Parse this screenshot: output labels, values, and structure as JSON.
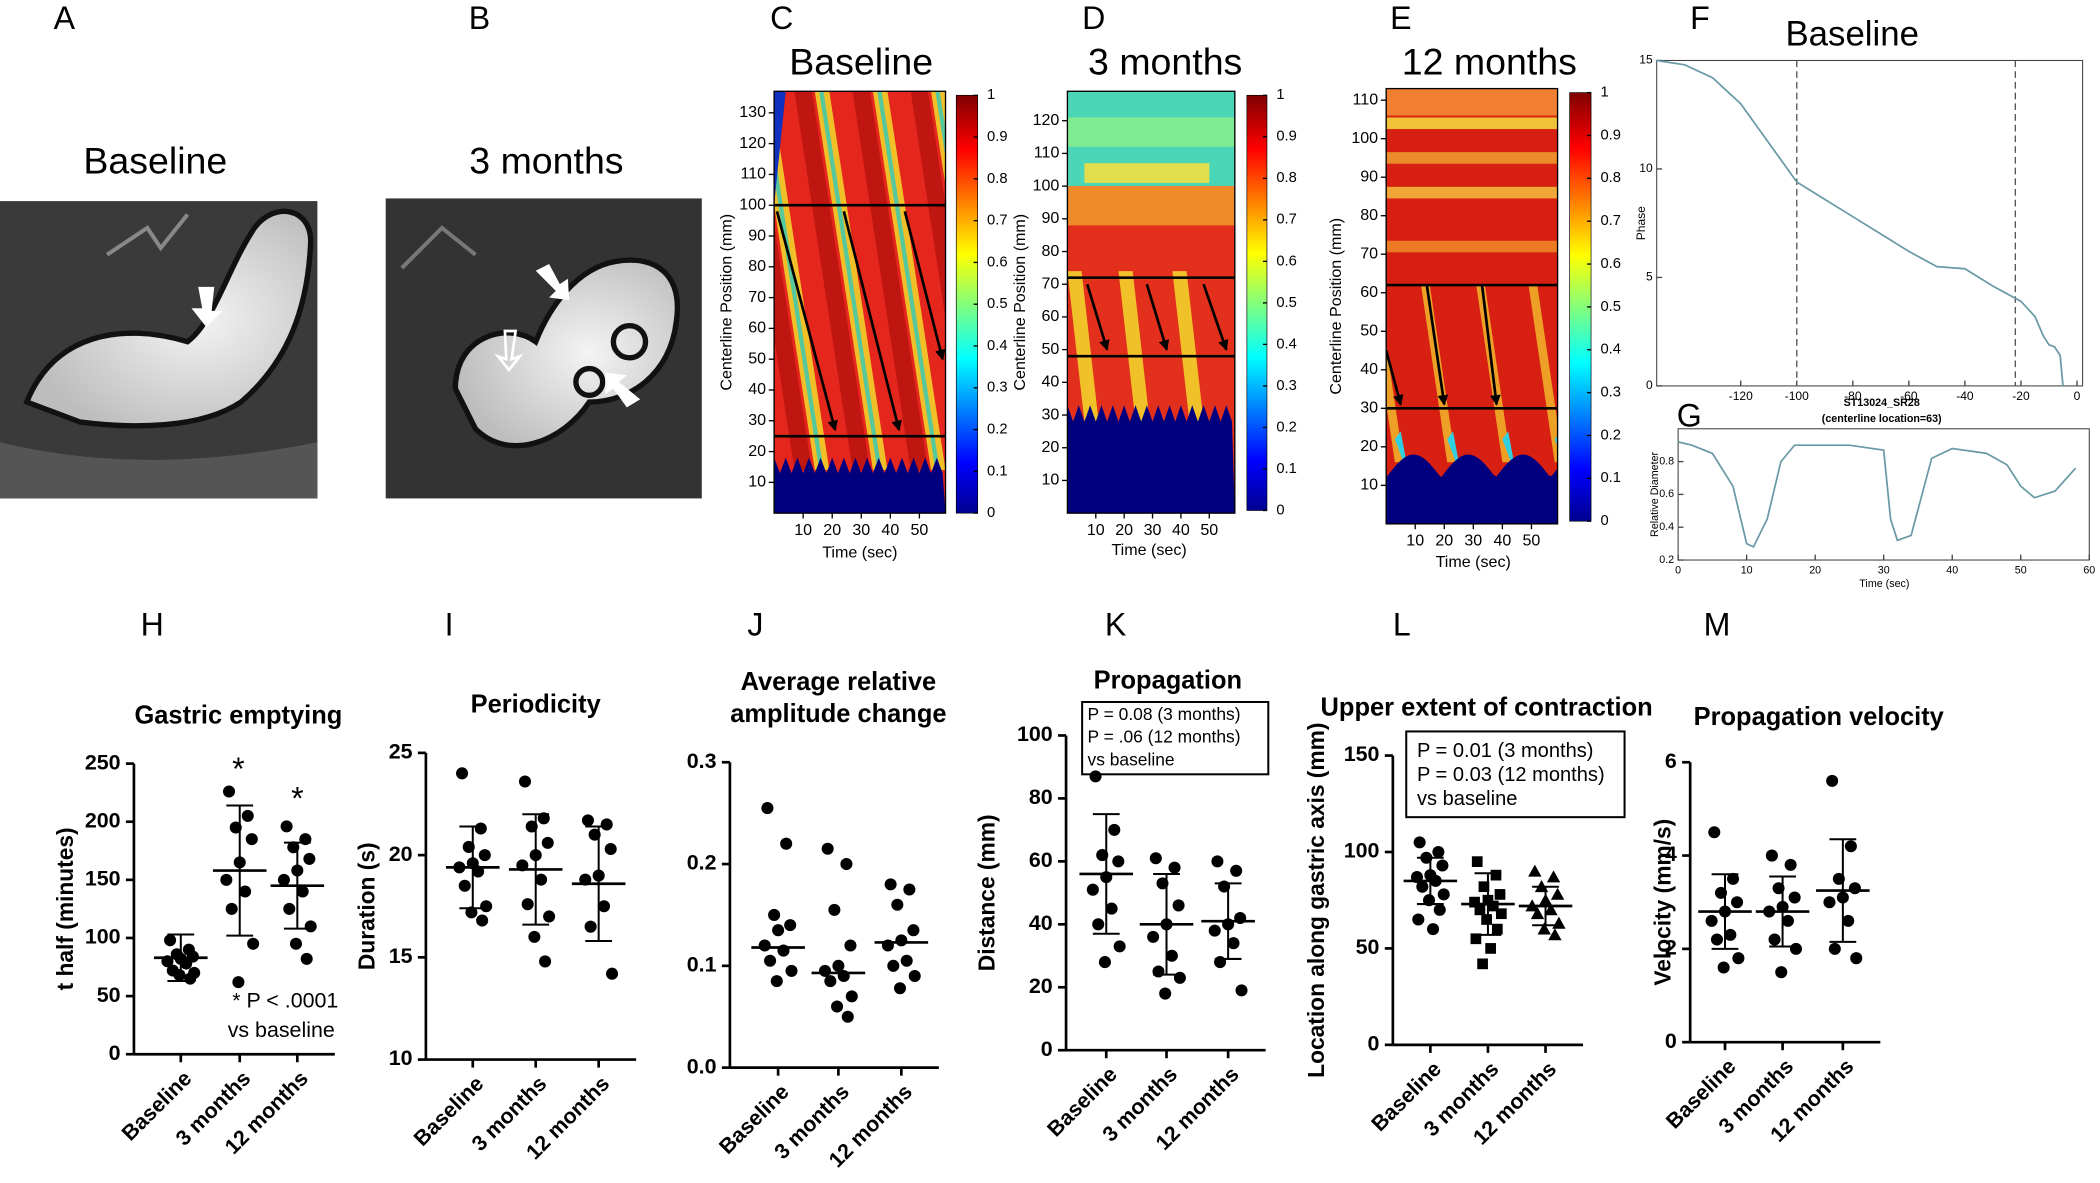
{
  "images": [
    {
      "label": "A",
      "title": "Baseline"
    },
    {
      "label": "B",
      "title": "3 months"
    }
  ],
  "chart_data": [
    {
      "type": "heatmap",
      "panel": "C",
      "title": "Baseline",
      "xlabel": "Time (sec)",
      "ylabel": "Centerline Position (mm)",
      "xlim": [
        0,
        59
      ],
      "xticks": [
        10,
        20,
        30,
        40,
        50
      ],
      "ylim": [
        0,
        137
      ],
      "yticks": [
        10,
        20,
        30,
        40,
        50,
        60,
        70,
        80,
        90,
        100,
        110,
        120,
        130
      ],
      "colorbar_ticks": [
        0,
        0.1,
        0.2,
        0.3,
        0.4,
        0.5,
        0.6,
        0.7,
        0.8,
        0.9,
        1
      ]
    },
    {
      "type": "heatmap",
      "panel": "D",
      "title": "3 months",
      "xlabel": "Time (sec)",
      "ylabel": "Centerline Position (mm)",
      "xlim": [
        0,
        59
      ],
      "xticks": [
        10,
        20,
        30,
        40,
        50
      ],
      "ylim": [
        0,
        129
      ],
      "yticks": [
        10,
        20,
        30,
        40,
        50,
        60,
        70,
        80,
        90,
        100,
        110,
        120
      ],
      "colorbar_ticks": [
        0,
        0.1,
        0.2,
        0.3,
        0.4,
        0.5,
        0.6,
        0.7,
        0.8,
        0.9,
        1
      ]
    },
    {
      "type": "heatmap",
      "panel": "E",
      "title": "12 months",
      "xlabel": "Time (sec)",
      "ylabel": "Centerline Position (mm)",
      "xlim": [
        0,
        59
      ],
      "xticks": [
        10,
        20,
        30,
        40,
        50
      ],
      "ylim": [
        0,
        113
      ],
      "yticks": [
        10,
        20,
        30,
        40,
        50,
        60,
        70,
        80,
        90,
        100,
        110
      ],
      "colorbar_ticks": [
        0,
        0.1,
        0.2,
        0.3,
        0.4,
        0.5,
        0.6,
        0.7,
        0.8,
        0.9,
        1
      ]
    },
    {
      "type": "line",
      "panel": "F",
      "title": "Baseline",
      "ylabel": "Phase",
      "color": "#6a9aa6",
      "x": [
        -150,
        -140,
        -130,
        -120,
        -110,
        -100,
        -90,
        -80,
        -70,
        -60,
        -50,
        -40,
        -30,
        -20,
        -15,
        -12,
        -10,
        -8,
        -6,
        -5
      ],
      "values": [
        15,
        14.8,
        14.2,
        13,
        11.2,
        9.4,
        8.6,
        7.8,
        7,
        6.2,
        5.5,
        5.4,
        4.6,
        3.9,
        3.2,
        2.3,
        1.9,
        1.8,
        1.4,
        0
      ],
      "xlim": [
        -150,
        2
      ],
      "xticks": [
        -120,
        -100,
        -80,
        -60,
        -40,
        -20,
        0
      ],
      "ylim": [
        0,
        15
      ],
      "yticks": [
        0,
        5,
        10,
        15
      ],
      "vlines": [
        -100,
        -22
      ]
    },
    {
      "type": "line",
      "panel": "G",
      "title": "ST13024_SR28",
      "subtitle": "(centerline location=63)",
      "xlabel": "Time (sec)",
      "ylabel": "Relative Diameter",
      "color": "#6a9aa6",
      "x": [
        0,
        2,
        5,
        8,
        10,
        11,
        13,
        15,
        17,
        20,
        25,
        30,
        31,
        32,
        34,
        37,
        40,
        45,
        48,
        50,
        52,
        55,
        58
      ],
      "values": [
        0.92,
        0.9,
        0.85,
        0.65,
        0.3,
        0.28,
        0.45,
        0.8,
        0.9,
        0.9,
        0.9,
        0.87,
        0.45,
        0.32,
        0.35,
        0.82,
        0.88,
        0.85,
        0.78,
        0.65,
        0.58,
        0.62,
        0.76
      ],
      "xlim": [
        0,
        60
      ],
      "xticks": [
        0,
        10,
        20,
        30,
        40,
        50,
        60
      ],
      "ylim": [
        0.2,
        1
      ],
      "yticks": [
        0.2,
        0.4,
        0.6,
        0.8
      ]
    },
    {
      "type": "dot",
      "panel": "H",
      "title": [
        "Gastric emptying"
      ],
      "ylabel": "t half (minutes)",
      "categories": [
        "Baseline",
        "3 months",
        "12 months"
      ],
      "points": [
        [
          98,
          90,
          86,
          84,
          82,
          80,
          78,
          72,
          70,
          68,
          65
        ],
        [
          226,
          205,
          195,
          185,
          165,
          150,
          140,
          125,
          95,
          62
        ],
        [
          196,
          185,
          178,
          168,
          158,
          150,
          140,
          125,
          110,
          95,
          82
        ]
      ],
      "means": [
        83,
        158,
        145
      ],
      "sd": [
        20,
        56,
        37
      ],
      "ylim": [
        0,
        250
      ],
      "yticks": [
        0,
        50,
        100,
        150,
        200,
        250
      ],
      "annotations": [
        "*",
        "*",
        "* P < .0001",
        "vs baseline"
      ]
    },
    {
      "type": "dot",
      "panel": "I",
      "title": [
        "Periodicity"
      ],
      "ylabel": "Duration (s)",
      "categories": [
        "Baseline",
        "3 months",
        "12 months"
      ],
      "points": [
        [
          24,
          21.3,
          20.4,
          20,
          19.6,
          19.4,
          19.2,
          18.5,
          17.5,
          17.2,
          16.8
        ],
        [
          23.6,
          21.8,
          21.4,
          20.6,
          20,
          19.5,
          18.8,
          17.6,
          17,
          16,
          14.8
        ],
        [
          21.7,
          21.5,
          21,
          20.3,
          19,
          18.8,
          17.5,
          16.5,
          14.2
        ]
      ],
      "means": [
        19.4,
        19.3,
        18.6
      ],
      "sd": [
        2,
        2.7,
        2.8
      ],
      "ylim": [
        10,
        25
      ],
      "yticks": [
        10,
        15,
        20,
        25
      ]
    },
    {
      "type": "dot",
      "panel": "J",
      "title": [
        "Average relative",
        "amplitude change"
      ],
      "categories": [
        "Baseline",
        "3 months",
        "12 months"
      ],
      "points": [
        [
          0.255,
          0.22,
          0.15,
          0.14,
          0.135,
          0.12,
          0.115,
          0.105,
          0.095,
          0.085
        ],
        [
          0.215,
          0.2,
          0.155,
          0.12,
          0.1,
          0.095,
          0.09,
          0.085,
          0.07,
          0.06,
          0.05
        ],
        [
          0.18,
          0.175,
          0.16,
          0.135,
          0.125,
          0.12,
          0.105,
          0.1,
          0.09,
          0.078
        ]
      ],
      "medians": [
        0.118,
        0.093,
        0.123
      ],
      "ylim": [
        0,
        0.3
      ],
      "yticks": [
        {
          "value": 0,
          "label": "0.0"
        },
        0.1,
        0.2,
        0.3
      ]
    },
    {
      "type": "dot",
      "panel": "K",
      "title": [
        "Propagation"
      ],
      "ylabel": "Distance (mm)",
      "categories": [
        "Baseline",
        "3 months",
        "12 months"
      ],
      "points": [
        [
          87,
          70,
          62,
          60,
          55,
          51,
          45,
          40,
          33,
          28
        ],
        [
          61,
          58,
          53,
          46,
          40,
          36,
          30,
          25,
          23,
          18
        ],
        [
          60,
          57,
          52,
          42,
          40,
          38,
          34,
          28,
          19
        ]
      ],
      "means": [
        56,
        40,
        41
      ],
      "sd": [
        19,
        16,
        12
      ],
      "ylim": [
        0,
        100
      ],
      "yticks": [
        0,
        20,
        40,
        60,
        80,
        100
      ],
      "annotations": [
        "P = 0.08 (3 months)",
        "P = .06 (12 months)",
        "vs baseline"
      ]
    },
    {
      "type": "dot",
      "panel": "L",
      "title": [
        "Upper extent of contraction"
      ],
      "ylabel": "Location along gastric axis (mm)",
      "categories": [
        "Baseline",
        "3 months",
        "12 months"
      ],
      "markers": [
        "circle",
        "square",
        "triangle"
      ],
      "points": [
        [
          105,
          100,
          97,
          93,
          88,
          87,
          85,
          82,
          78,
          75,
          70,
          65,
          60
        ],
        [
          95,
          88,
          82,
          78,
          75,
          74,
          72,
          70,
          68,
          65,
          60,
          55,
          50,
          42
        ],
        [
          90,
          87,
          82,
          78,
          75,
          72,
          70,
          68,
          63,
          60,
          57
        ]
      ],
      "means": [
        85,
        73,
        72
      ],
      "sd": [
        12,
        16,
        10
      ],
      "ylim": [
        0,
        150
      ],
      "yticks": [
        0,
        50,
        100,
        150
      ],
      "annotations": [
        "P = 0.01 (3 months)",
        "P = 0.03 (12 months)",
        "vs baseline"
      ]
    },
    {
      "type": "dot",
      "panel": "M",
      "title": [
        "Propagation velocity"
      ],
      "ylabel": "Velocity (mm/s)",
      "categories": [
        "Baseline",
        "3 months",
        "12 months"
      ],
      "points": [
        [
          4.5,
          3.5,
          3.2,
          3.0,
          2.8,
          2.6,
          2.3,
          2.2,
          1.8,
          1.6
        ],
        [
          4.0,
          3.8,
          3.3,
          3.1,
          2.9,
          2.8,
          2.6,
          2.2,
          2.0,
          1.5
        ],
        [
          5.6,
          4.2,
          3.5,
          3.3,
          3.1,
          3.0,
          2.6,
          2.0,
          1.8
        ]
      ],
      "means": [
        2.8,
        2.8,
        3.25
      ],
      "sd": [
        0.8,
        0.75,
        1.1
      ],
      "ylim": [
        0,
        6
      ],
      "yticks": [
        0,
        2,
        4,
        6
      ]
    }
  ]
}
